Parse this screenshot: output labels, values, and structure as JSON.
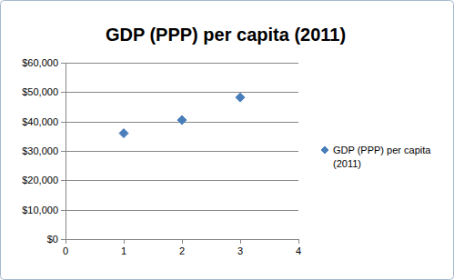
{
  "chart_data": {
    "type": "scatter",
    "title": "GDP (PPP) per capita (2011)",
    "x": [
      1,
      2,
      3
    ],
    "series": [
      {
        "name": "GDP (PPP) per capita (2011)",
        "color": "#4a7ebb",
        "marker": "diamond",
        "values": [
          36000,
          40500,
          48200
        ]
      }
    ],
    "xlim": [
      0,
      4
    ],
    "xticks": [
      0,
      1,
      2,
      3,
      4
    ],
    "ylim": [
      0,
      60000
    ],
    "yticks": [
      {
        "value": 0,
        "label": "$0"
      },
      {
        "value": 10000,
        "label": "$10,000"
      },
      {
        "value": 20000,
        "label": "$20,000"
      },
      {
        "value": 30000,
        "label": "$30,000"
      },
      {
        "value": 40000,
        "label": "$40,000"
      },
      {
        "value": 50000,
        "label": "$50,000"
      },
      {
        "value": 60000,
        "label": "$60,000"
      }
    ],
    "grid": true,
    "legend": "right"
  }
}
